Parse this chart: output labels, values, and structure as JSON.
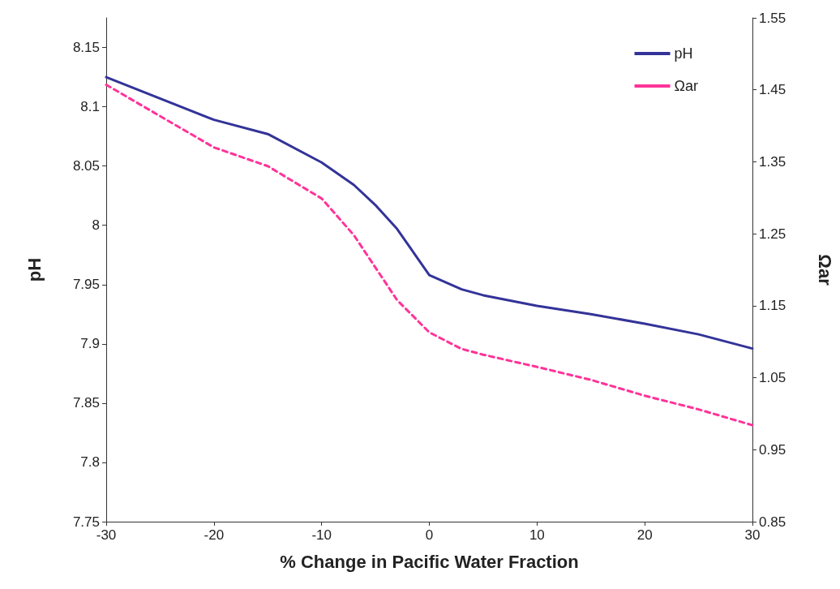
{
  "chart_data": {
    "type": "line",
    "xlabel": "% Change in Pacific Water Fraction",
    "ylabel": "pH",
    "y2label": "Ωar",
    "x": [
      -30,
      -20,
      -15,
      -10,
      -7,
      -5,
      -3,
      0,
      3,
      5,
      10,
      15,
      20,
      25,
      30
    ],
    "series": [
      {
        "name": "pH",
        "color": "#333399",
        "line_style": "solid",
        "values": [
          8.125,
          8.089,
          8.077,
          8.053,
          8.034,
          8.017,
          7.997,
          7.958,
          7.946,
          7.941,
          7.932,
          7.925,
          7.917,
          7.908,
          7.896
        ]
      },
      {
        "name": "Ωar",
        "color": "#ff3399",
        "line_style": "dashed",
        "axis": "y2",
        "values": [
          1.457,
          1.37,
          1.344,
          1.299,
          1.248,
          1.203,
          1.158,
          1.113,
          1.09,
          1.082,
          1.065,
          1.047,
          1.025,
          1.006,
          0.984
        ]
      }
    ],
    "xlim": [
      -30,
      30
    ],
    "xticks": [
      -30,
      -20,
      -10,
      0,
      10,
      20,
      30
    ],
    "ylim": [
      7.75,
      8.175
    ],
    "yticks": [
      7.75,
      7.8,
      7.85,
      7.9,
      7.95,
      8,
      8.05,
      8.1,
      8.15
    ],
    "y2lim": [
      0.85,
      1.55
    ],
    "y2ticks": [
      0.85,
      0.95,
      1.05,
      1.15,
      1.25,
      1.35,
      1.45,
      1.55
    ],
    "grid": false,
    "legend": "top right",
    "marker": "none"
  }
}
